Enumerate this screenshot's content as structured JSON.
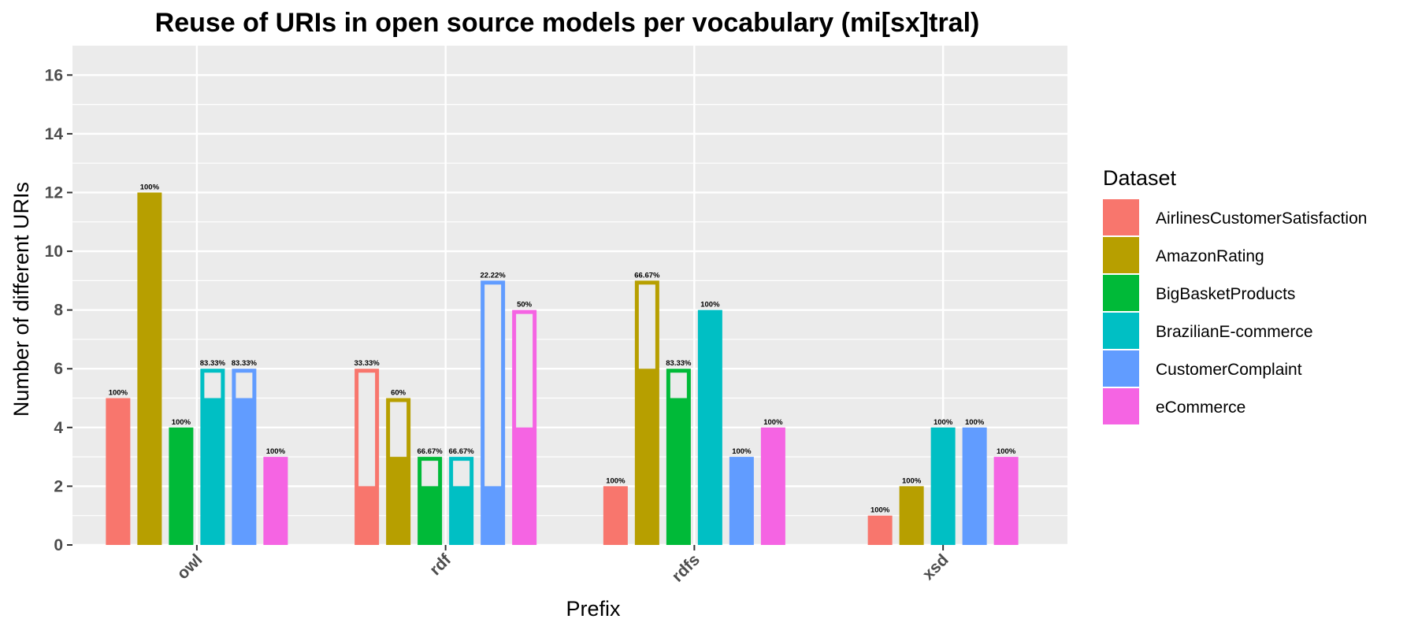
{
  "chart_data": {
    "type": "bar",
    "title": "Reuse of URIs in open source models per vocabulary (mi[sx]tral)",
    "xlabel": "Prefix",
    "ylabel": "Number of different URIs",
    "categories": [
      "owl",
      "rdf",
      "rdfs",
      "xsd"
    ],
    "ylim": [
      0,
      17
    ],
    "yticks": [
      0,
      2,
      4,
      6,
      8,
      10,
      12,
      14,
      16
    ],
    "grid": true,
    "legend": {
      "title": "Dataset",
      "position": "right"
    },
    "series": [
      {
        "name": "AirlinesCustomerSatisfaction",
        "color": "#F8766D",
        "values": [
          5,
          6,
          2,
          1
        ],
        "reused": [
          5,
          2,
          2,
          1
        ],
        "labels": [
          "100%",
          "33.33%",
          "100%",
          "100%"
        ]
      },
      {
        "name": "AmazonRating",
        "color": "#B79F00",
        "values": [
          12,
          5,
          9,
          2
        ],
        "reused": [
          12,
          3,
          6,
          2
        ],
        "labels": [
          "100%",
          "60%",
          "66.67%",
          "100%"
        ]
      },
      {
        "name": "BigBasketProducts",
        "color": "#00BA38",
        "values": [
          4,
          3,
          6,
          null
        ],
        "reused": [
          4,
          2,
          5,
          null
        ],
        "labels": [
          "100%",
          "66.67%",
          "83.33%",
          null
        ]
      },
      {
        "name": "BrazilianE-commerce",
        "color": "#00BFC4",
        "values": [
          6,
          3,
          8,
          4
        ],
        "reused": [
          5,
          2,
          8,
          4
        ],
        "labels": [
          "83.33%",
          "66.67%",
          "100%",
          "100%"
        ]
      },
      {
        "name": "CustomerComplaint",
        "color": "#619CFF",
        "values": [
          6,
          9,
          3,
          4
        ],
        "reused": [
          5,
          2,
          3,
          4
        ],
        "labels": [
          "83.33%",
          "22.22%",
          "100%",
          "100%"
        ]
      },
      {
        "name": "eCommerce",
        "color": "#F564E3",
        "values": [
          3,
          8,
          4,
          3
        ],
        "reused": [
          3,
          4,
          4,
          3
        ],
        "labels": [
          "100%",
          "50%",
          "100%",
          "100%"
        ]
      }
    ]
  }
}
